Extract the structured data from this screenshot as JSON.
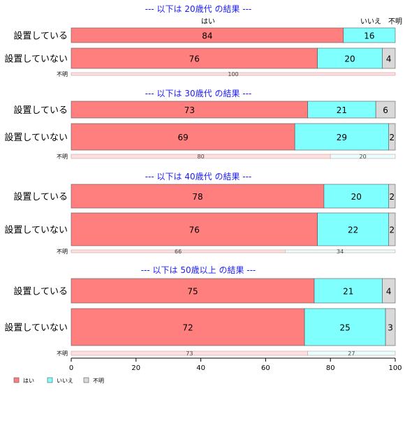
{
  "chart_data": {
    "type": "bar",
    "orientation": "horizontal",
    "stacked": "percent",
    "series_names": [
      "はい",
      "いいえ",
      "不明"
    ],
    "colors": {
      "yes": "#ff7f7f",
      "no": "#80ffff",
      "unknown": "#d9d9d9",
      "yes_light": "#ffe0e0",
      "no_light": "#e6ffff",
      "title": "#1a1aff"
    },
    "top_labels": [
      "はい",
      "いいえ",
      "不明"
    ],
    "groups": [
      {
        "title": "--- 以下は 20歳代 の結果 ---",
        "rows": [
          {
            "label": "設置している",
            "values": [
              84,
              16,
              0
            ],
            "shown": [
              "84",
              "16",
              ""
            ]
          },
          {
            "label": "設置していない",
            "values": [
              76,
              20,
              4
            ],
            "shown": [
              "76",
              "20",
              "4"
            ]
          },
          {
            "label": "不明",
            "values": [
              100,
              0,
              0
            ],
            "shown": [
              "100",
              "",
              ""
            ],
            "small": true
          }
        ]
      },
      {
        "title": "--- 以下は 30歳代 の結果 ---",
        "rows": [
          {
            "label": "設置している",
            "values": [
              73,
              21,
              6
            ],
            "shown": [
              "73",
              "21",
              "6"
            ]
          },
          {
            "label": "設置していない",
            "values": [
              69,
              29,
              2
            ],
            "shown": [
              "69",
              "29",
              "2"
            ]
          },
          {
            "label": "不明",
            "values": [
              80,
              20,
              0
            ],
            "shown": [
              "80",
              "20",
              ""
            ],
            "small": true
          }
        ]
      },
      {
        "title": "--- 以下は 40歳代 の結果 ---",
        "rows": [
          {
            "label": "設置している",
            "values": [
              78,
              20,
              2
            ],
            "shown": [
              "78",
              "20",
              "2"
            ]
          },
          {
            "label": "設置していない",
            "values": [
              76,
              22,
              2
            ],
            "shown": [
              "76",
              "22",
              "2"
            ]
          },
          {
            "label": "不明",
            "values": [
              66,
              34,
              0
            ],
            "shown": [
              "66",
              "34",
              ""
            ],
            "small": true
          }
        ]
      },
      {
        "title": "--- 以下は 50歳以上 の結果 ---",
        "rows": [
          {
            "label": "設置している",
            "values": [
              75,
              21,
              4
            ],
            "shown": [
              "75",
              "21",
              "4"
            ]
          },
          {
            "label": "設置していない",
            "values": [
              72,
              25,
              3
            ],
            "shown": [
              "72",
              "25",
              "3"
            ]
          },
          {
            "label": "不明",
            "values": [
              73,
              27,
              0
            ],
            "shown": [
              "73",
              "27",
              ""
            ],
            "small": true
          }
        ]
      }
    ],
    "xaxis": {
      "ticks": [
        "0",
        "20",
        "40",
        "60",
        "80",
        "100"
      ],
      "range": [
        0,
        100
      ]
    },
    "legend": {
      "position": "bottom-left",
      "items": [
        "はい",
        "いいえ",
        "不明"
      ]
    }
  }
}
